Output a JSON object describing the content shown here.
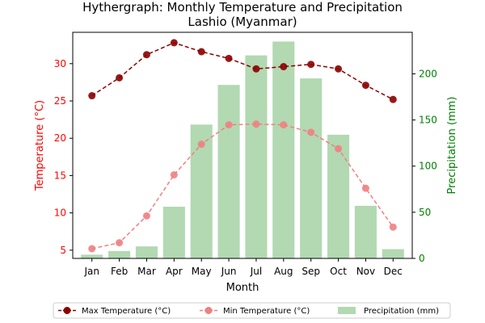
{
  "chart_data": {
    "type": "combo-line-bar",
    "title_line1": "Hythergraph: Monthly Temperature and Precipitation",
    "title_line2": "Lashio (Myanmar)",
    "xlabel": "Month",
    "ylabel_left": "Temperature (°C)",
    "ylabel_right": "Precipitation (mm)",
    "categories": [
      "Jan",
      "Feb",
      "Mar",
      "Apr",
      "May",
      "Jun",
      "Jul",
      "Aug",
      "Sep",
      "Oct",
      "Nov",
      "Dec"
    ],
    "ylim_left": [
      3.9,
      34.2
    ],
    "yticks_left": [
      5,
      10,
      15,
      20,
      25,
      30
    ],
    "ylim_right": [
      0,
      245
    ],
    "yticks_right": [
      0,
      50,
      100,
      150,
      200
    ],
    "series": [
      {
        "name": "Max Temperature (°C)",
        "kind": "line",
        "axis": "left",
        "color": "#8b0000",
        "dashed": true,
        "values": [
          25.7,
          28.1,
          31.2,
          32.8,
          31.6,
          30.7,
          29.3,
          29.6,
          29.9,
          29.3,
          27.1,
          25.2
        ]
      },
      {
        "name": "Min Temperature (°C)",
        "kind": "line",
        "axis": "left",
        "color": "#f08080",
        "dashed": true,
        "values": [
          5.2,
          6.0,
          9.6,
          15.1,
          19.2,
          21.8,
          21.9,
          21.8,
          20.8,
          18.6,
          13.3,
          8.1
        ]
      },
      {
        "name": "Precipitation (mm)",
        "kind": "bar",
        "axis": "right",
        "color": "#b2d9b2",
        "values": [
          4,
          8,
          13,
          56,
          145,
          188,
          220,
          235,
          195,
          134,
          57,
          10
        ]
      }
    ],
    "legend_position": "bottom-center",
    "left_axis_color": "#ff0000",
    "right_axis_color": "#008000",
    "grid": false
  }
}
